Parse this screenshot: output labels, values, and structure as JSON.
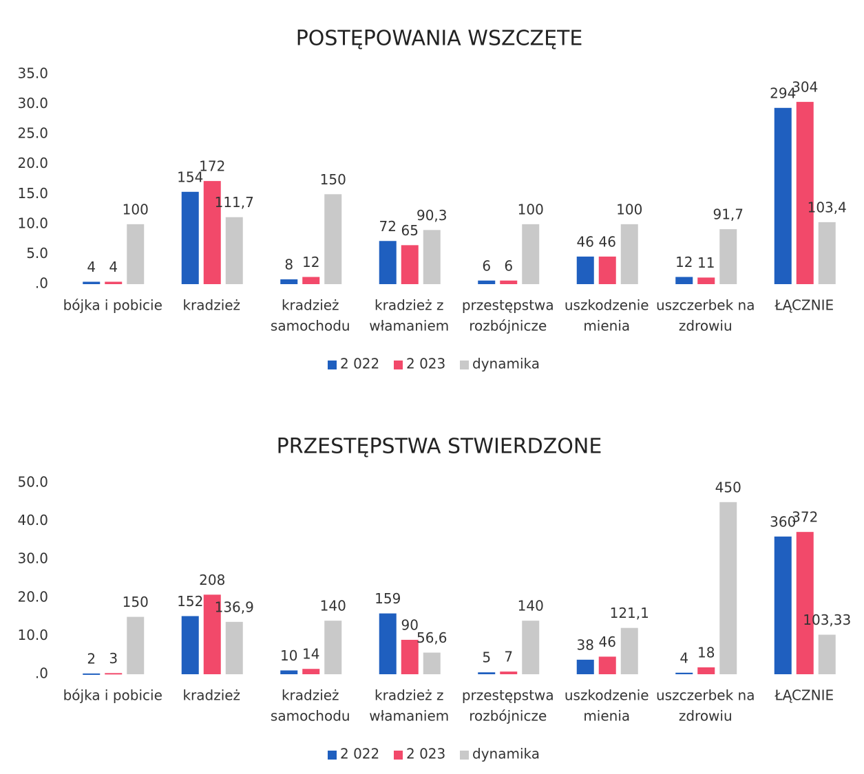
{
  "chart_data": [
    {
      "type": "bar",
      "title": "POSTĘPOWANIA WSZCZĘTE",
      "categories": [
        [
          "bójka i pobicie"
        ],
        [
          "kradzież"
        ],
        [
          "kradzież",
          "samochodu"
        ],
        [
          "kradzież z",
          "włamaniem"
        ],
        [
          "przestępstwa",
          "rozbójnicze"
        ],
        [
          "uszkodzenie",
          "mienia"
        ],
        [
          "uszczerbek na",
          "zdrowiu"
        ],
        [
          "ŁĄCZNIE"
        ]
      ],
      "series": [
        {
          "name": "2 022",
          "color": "#1f5fbf",
          "values": [
            0.4,
            15.4,
            0.8,
            7.2,
            0.6,
            4.6,
            1.2,
            29.4
          ],
          "value_labels": [
            "4",
            "154",
            "8",
            "72",
            "6",
            "46",
            "12",
            "294"
          ]
        },
        {
          "name": "2 023",
          "color": "#f2496a",
          "values": [
            0.4,
            17.2,
            1.2,
            6.5,
            0.6,
            4.6,
            1.1,
            30.4
          ],
          "value_labels": [
            "4",
            "172",
            "12",
            "65",
            "6",
            "46",
            "11",
            "304"
          ]
        },
        {
          "name": "dynamika",
          "color": "#c9c9c9",
          "values": [
            10.0,
            11.17,
            15.0,
            9.03,
            10.0,
            10.0,
            9.17,
            10.34
          ],
          "value_labels": [
            "100",
            "111,7",
            "150",
            "90,3",
            "100",
            "100",
            "91,7",
            "103,4"
          ]
        }
      ],
      "ylim": [
        0,
        35
      ],
      "yticks": [
        {
          "value": 0,
          "label": ".0"
        },
        {
          "value": 5,
          "label": "5.0"
        },
        {
          "value": 10,
          "label": "10.0"
        },
        {
          "value": 15,
          "label": "15.0"
        },
        {
          "value": 20,
          "label": "20.0"
        },
        {
          "value": 25,
          "label": "25.0"
        },
        {
          "value": 30,
          "label": "30.0"
        },
        {
          "value": 35,
          "label": "35.0"
        }
      ],
      "legend": "bottom"
    },
    {
      "type": "bar",
      "title": "PRZESTĘPSTWA STWIERDZONE",
      "categories": [
        [
          "bójka i pobicie"
        ],
        [
          "kradzież"
        ],
        [
          "kradzież",
          "samochodu"
        ],
        [
          "kradzież z",
          "włamaniem"
        ],
        [
          "przestępstwa",
          "rozbójnicze"
        ],
        [
          "uszkodzenie",
          "mienia"
        ],
        [
          "uszczerbek na",
          "zdrowiu"
        ],
        [
          "ŁĄCZNIE"
        ]
      ],
      "series": [
        {
          "name": "2 022",
          "color": "#1f5fbf",
          "values": [
            0.2,
            15.2,
            1.0,
            15.9,
            0.5,
            3.8,
            0.4,
            36.0
          ],
          "value_labels": [
            "2",
            "152",
            "10",
            "159",
            "5",
            "38",
            "4",
            "360"
          ]
        },
        {
          "name": "2 023",
          "color": "#f2496a",
          "values": [
            0.3,
            20.8,
            1.4,
            9.0,
            0.7,
            4.6,
            1.8,
            37.2
          ],
          "value_labels": [
            "3",
            "208",
            "14",
            "90",
            "7",
            "46",
            "18",
            "372"
          ]
        },
        {
          "name": "dynamika",
          "color": "#c9c9c9",
          "values": [
            15.0,
            13.69,
            14.0,
            5.66,
            14.0,
            12.11,
            45.0,
            10.333
          ],
          "value_labels": [
            "150",
            "136,9",
            "140",
            "56,6",
            "140",
            "121,1",
            "450",
            "103,33"
          ]
        }
      ],
      "ylim": [
        0,
        50
      ],
      "yticks": [
        {
          "value": 0,
          "label": ".0"
        },
        {
          "value": 10,
          "label": "10.0"
        },
        {
          "value": 20,
          "label": "20.0"
        },
        {
          "value": 30,
          "label": "30.0"
        },
        {
          "value": 40,
          "label": "40.0"
        },
        {
          "value": 50,
          "label": "50.0"
        }
      ],
      "legend": "bottom"
    }
  ]
}
